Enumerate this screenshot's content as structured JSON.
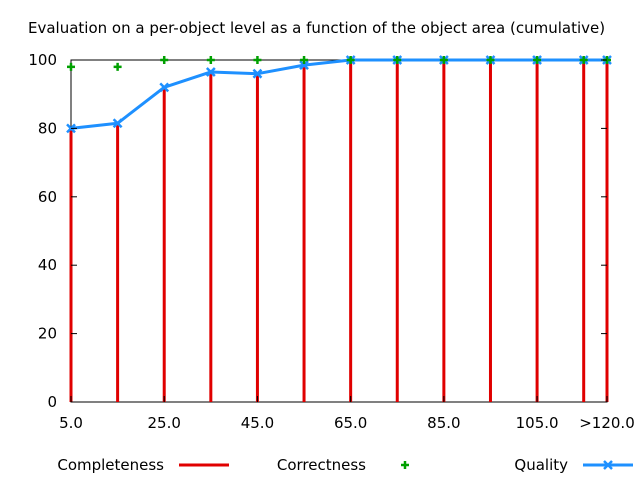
{
  "chart_data": {
    "type": "line",
    "title": "Evaluation on a per-object level as a function of the object area (cumulative)",
    "xlabel": "",
    "ylabel": "",
    "x": [
      5,
      15,
      25,
      35,
      45,
      55,
      65,
      75,
      85,
      95,
      105,
      115,
      120
    ],
    "x_tick_labels": [
      {
        "x": 5,
        "label": "5.0"
      },
      {
        "x": 25,
        "label": "25.0"
      },
      {
        "x": 45,
        "label": "45.0"
      },
      {
        "x": 65,
        "label": "65.0"
      },
      {
        "x": 85,
        "label": "85.0"
      },
      {
        "x": 105,
        "label": "105.0"
      },
      {
        "x": 120,
        "label": ">120.0"
      }
    ],
    "y_ticks": [
      0,
      20,
      40,
      60,
      80,
      100
    ],
    "xlim": [
      5,
      120
    ],
    "ylim": [
      0,
      100
    ],
    "grid": false,
    "legend_position": "bottom",
    "series": [
      {
        "name": "Completeness",
        "style": "impulses",
        "color": "#e00000",
        "values": [
          80,
          82,
          92,
          97,
          96,
          99,
          100,
          100,
          100,
          100,
          100,
          100,
          100
        ]
      },
      {
        "name": "Correctness",
        "style": "points",
        "color": "#00a000",
        "values": [
          98,
          98,
          100,
          100,
          100,
          100,
          100,
          100,
          100,
          100,
          100,
          100,
          100
        ]
      },
      {
        "name": "Quality",
        "style": "linespoints",
        "color": "#1e90ff",
        "values": [
          80,
          81.5,
          92,
          96.5,
          96,
          98.5,
          100,
          100,
          100,
          100,
          100,
          100,
          100
        ]
      }
    ]
  }
}
